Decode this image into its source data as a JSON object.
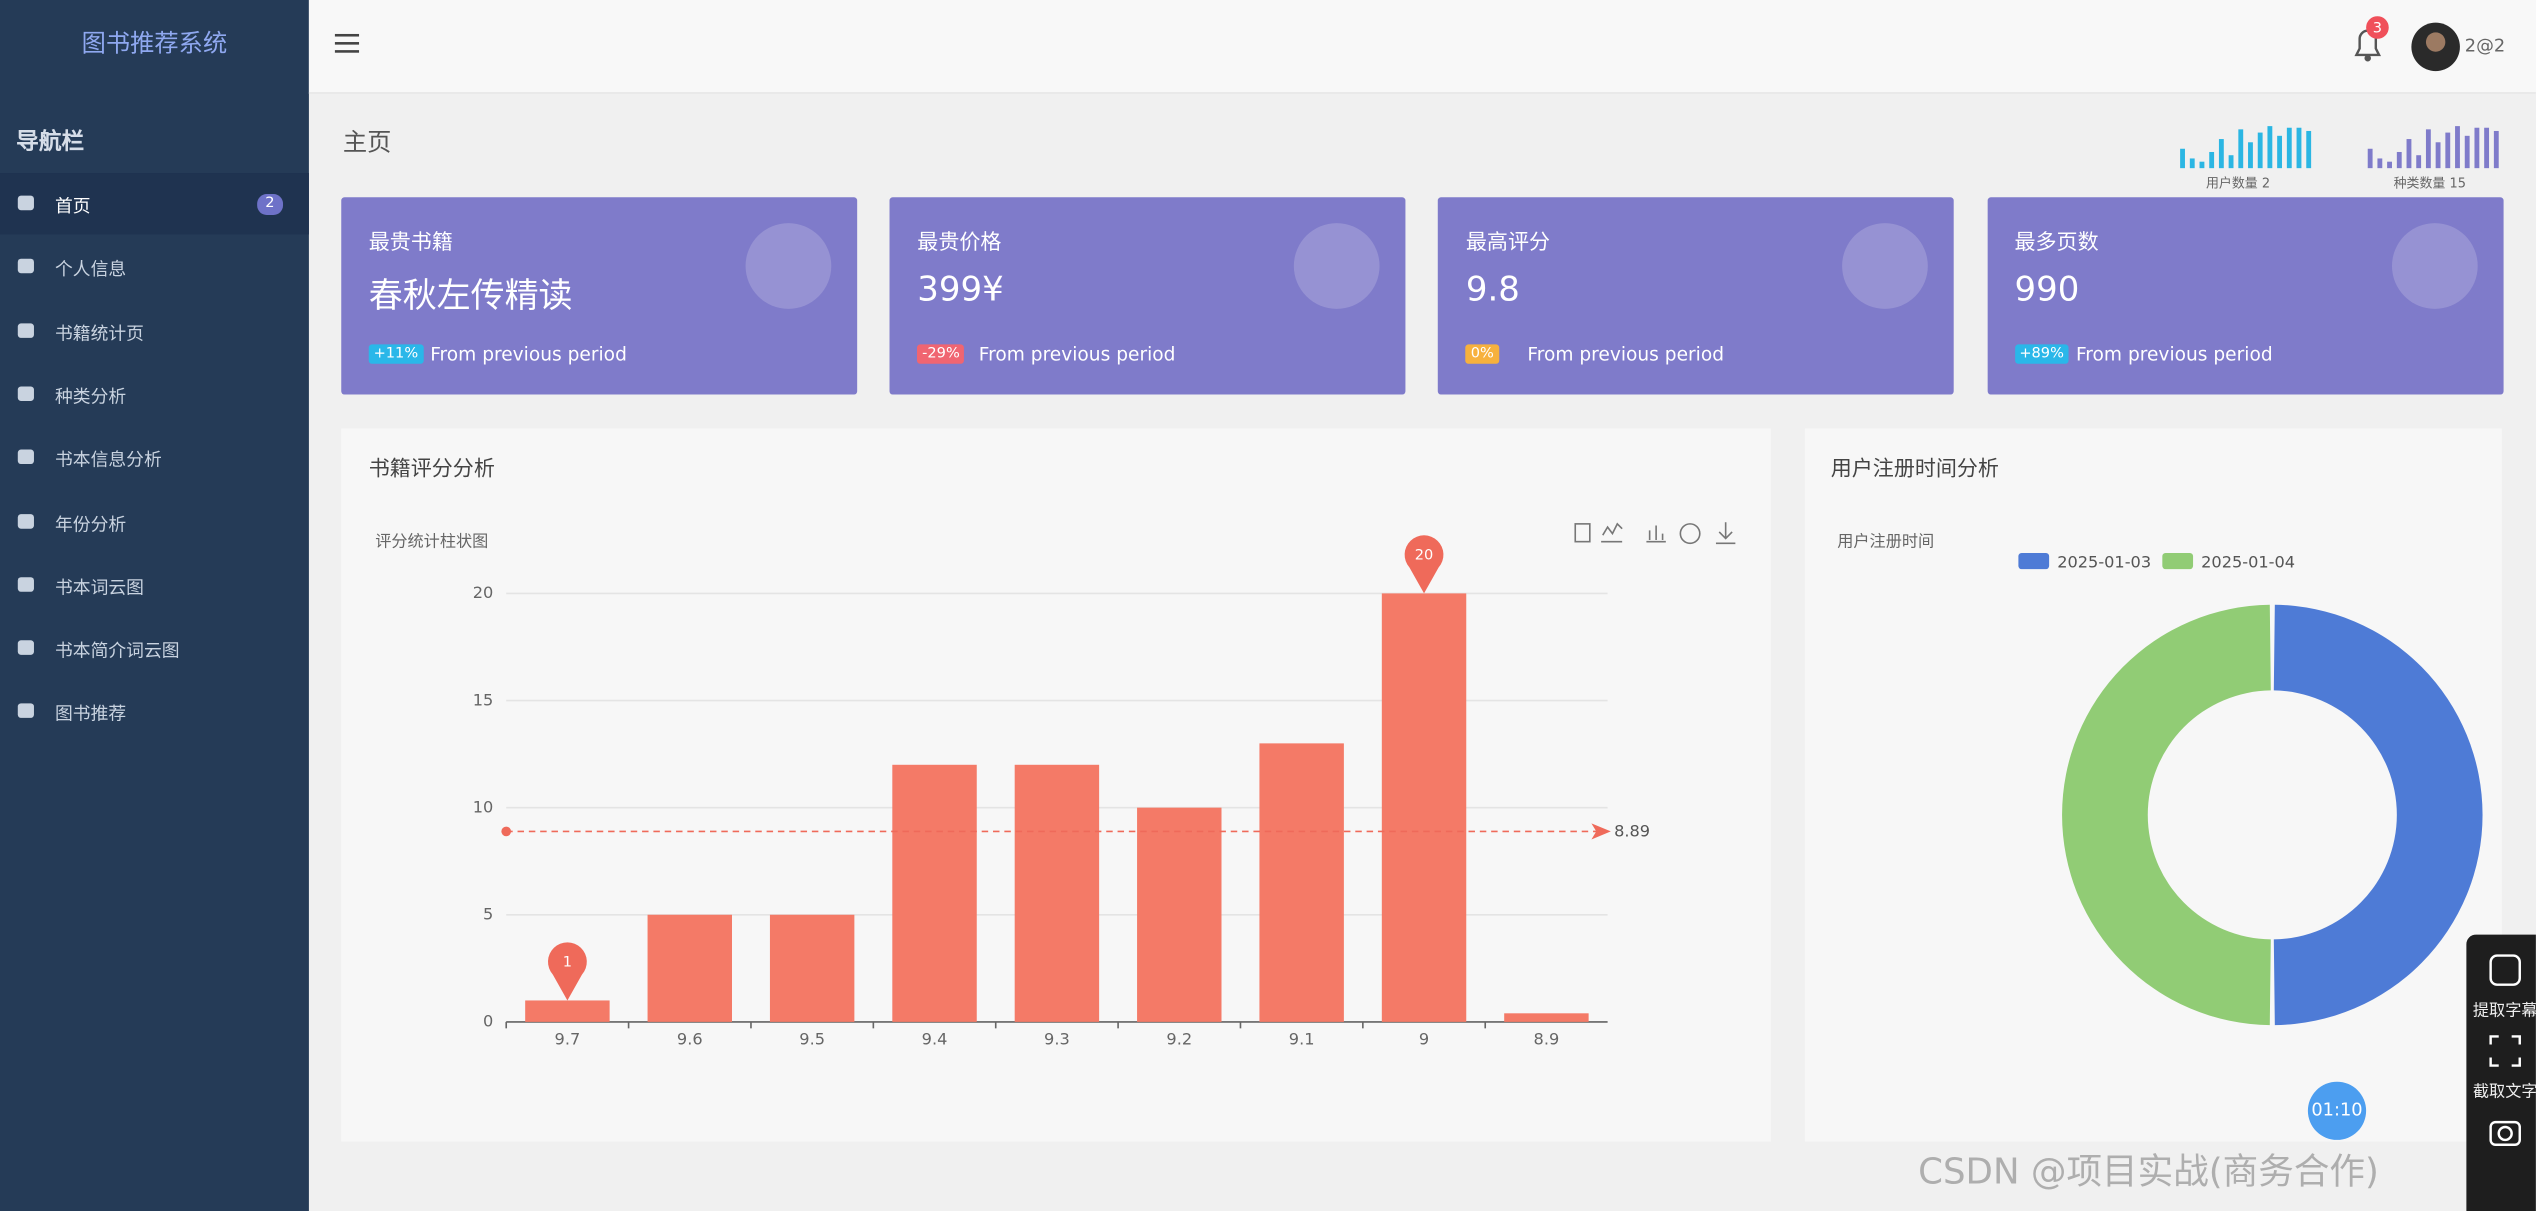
{
  "sidebar": {
    "brand": "图书推荐系统",
    "heading": "导航栏",
    "items": [
      {
        "label": "首页",
        "badge": 2
      },
      {
        "label": "个人信息"
      },
      {
        "label": "书籍统计页"
      },
      {
        "label": "种类分析"
      },
      {
        "label": "书本信息分析"
      },
      {
        "label": "年份分析"
      },
      {
        "label": "书本词云图"
      },
      {
        "label": "书本简介词云图"
      },
      {
        "label": "图书推荐"
      }
    ]
  },
  "header": {
    "notification_count": 3,
    "user": "2@2"
  },
  "breadcrumb": "主页",
  "mini_stats": [
    {
      "label": "用户数量 2",
      "color": "#2bb6e3"
    },
    {
      "label": "种类数量 15",
      "color": "#7f7bca"
    }
  ],
  "cards": [
    {
      "title": "最贵书籍",
      "value": "春秋左传精读",
      "change": "+11%",
      "badge_color": "#2ab7e9",
      "note": "From previous period"
    },
    {
      "title": "最贵价格",
      "value": "399¥",
      "change": "-29%",
      "badge_color": "#f06571",
      "note": "From previous period"
    },
    {
      "title": "最高评分",
      "value": "9.8",
      "change": "0%",
      "badge_color": "#f7b13d",
      "note": "From previous period"
    },
    {
      "title": "最多页数",
      "value": "990",
      "change": "+89%",
      "badge_color": "#2ab7e9",
      "note": "From previous period"
    }
  ],
  "bar_chart": {
    "type": "bar",
    "title": "书籍评分分析",
    "subtitle": "评分统计柱状图",
    "categories": [
      "9.7",
      "9.6",
      "9.5",
      "9.4",
      "9.3",
      "9.2",
      "9.1",
      "9",
      "8.9"
    ],
    "values": [
      1,
      5,
      5,
      12,
      12,
      10,
      13,
      20,
      0.4
    ],
    "color": "#f47a67",
    "ylim": [
      0,
      20
    ],
    "yticks": [
      0,
      5,
      10,
      15,
      20
    ],
    "average": 8.89
  },
  "pie_chart": {
    "type": "donut",
    "title": "用户注册时间分析",
    "subtitle": "用户注册时间",
    "categories": [
      "2025-01-03",
      "2025-01-04"
    ],
    "values": [
      1,
      1
    ],
    "colors": [
      "#4e7bd6",
      "#91cc75"
    ]
  },
  "timer": "01:10",
  "tools": [
    "提取字幕",
    "截取文字"
  ],
  "watermark": "CSDN @项目实战(商务合作)"
}
